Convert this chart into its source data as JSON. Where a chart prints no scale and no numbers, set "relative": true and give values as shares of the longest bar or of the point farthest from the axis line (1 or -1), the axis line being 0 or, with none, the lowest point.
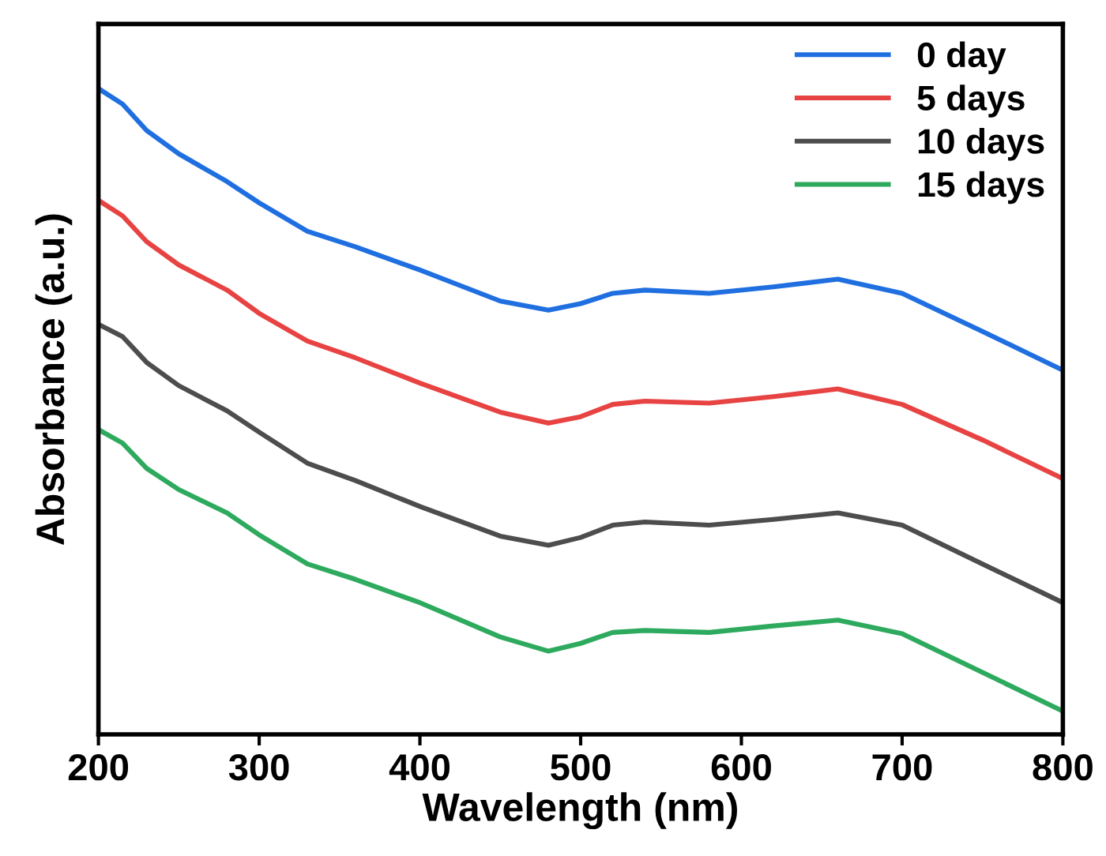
{
  "chart_data": {
    "type": "line",
    "relative": true,
    "xlabel": "Wavelength (nm)",
    "ylabel": "Absorbance (a.u.)",
    "xlim": [
      200,
      800
    ],
    "xticks": [
      200,
      300,
      400,
      500,
      600,
      700,
      800
    ],
    "tick_labels": "x",
    "legend": "top right",
    "grid": false,
    "marker": "none",
    "line_style": "solid",
    "x": [
      200,
      215,
      230,
      250,
      280,
      300,
      330,
      360,
      400,
      450,
      480,
      500,
      520,
      540,
      580,
      620,
      660,
      700,
      750,
      800
    ],
    "series": [
      {
        "name": "0 day",
        "color": "#1f6fe0",
        "values": [
          1.0,
          0.976,
          0.935,
          0.899,
          0.856,
          0.823,
          0.779,
          0.755,
          0.719,
          0.671,
          0.657,
          0.667,
          0.683,
          0.688,
          0.683,
          0.693,
          0.705,
          0.683,
          0.624,
          0.564
        ]
      },
      {
        "name": "5 days",
        "color": "#e84343",
        "values": [
          0.827,
          0.803,
          0.763,
          0.727,
          0.688,
          0.652,
          0.609,
          0.583,
          0.544,
          0.499,
          0.482,
          0.492,
          0.511,
          0.516,
          0.513,
          0.523,
          0.535,
          0.511,
          0.456,
          0.396
        ]
      },
      {
        "name": "10 days",
        "color": "#4d4d4d",
        "values": [
          0.635,
          0.616,
          0.576,
          0.54,
          0.501,
          0.468,
          0.42,
          0.393,
          0.353,
          0.307,
          0.293,
          0.305,
          0.324,
          0.329,
          0.324,
          0.333,
          0.343,
          0.324,
          0.264,
          0.204
        ]
      },
      {
        "name": "15 days",
        "color": "#2eaa5e",
        "values": [
          0.472,
          0.451,
          0.412,
          0.379,
          0.343,
          0.309,
          0.264,
          0.24,
          0.204,
          0.151,
          0.129,
          0.141,
          0.158,
          0.161,
          0.158,
          0.168,
          0.177,
          0.156,
          0.096,
          0.036
        ]
      }
    ]
  }
}
